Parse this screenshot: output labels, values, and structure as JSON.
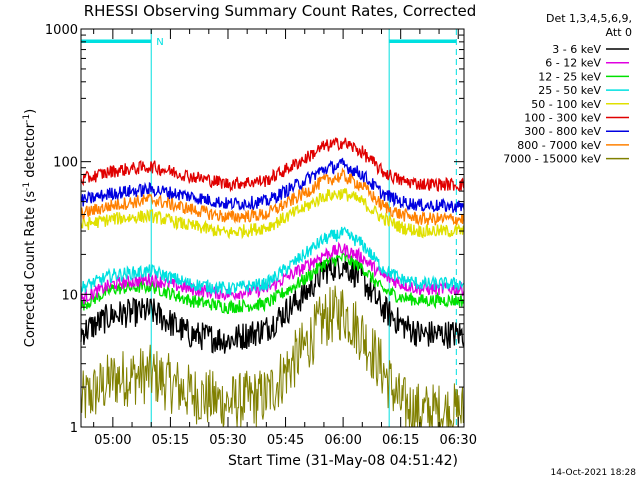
{
  "chart_data": {
    "type": "line",
    "title": "RHESSI Observing Summary Count Rates, Corrected",
    "xlabel": "Start Time (31-May-08 04:51:42)",
    "ylabel": "Corrected Count Rate (s-1 detector-1)",
    "ylabel_parts": {
      "main": "Corrected Count Rate (s",
      "exp1": "-1",
      "mid": " detector",
      "exp2": "-1",
      "end": ")"
    },
    "y_scale": "log",
    "ylim": [
      1,
      1000
    ],
    "xlim": [
      "04:51:42",
      "06:31:30"
    ],
    "x_ticks": [
      "05:00",
      "05:15",
      "05:30",
      "05:45",
      "06:00",
      "06:15",
      "06:30"
    ],
    "y_ticks": [
      "1",
      "10",
      "100",
      "1000"
    ],
    "legend_header": [
      "Det 1,3,4,5,6,9,",
      "Att 0"
    ],
    "legend_placement": "right",
    "timestamp": "14-Oct-2021 18:28",
    "night_flag": "N",
    "series": [
      {
        "name": "3 - 6 keV",
        "color": "#000000",
        "values": [
          [
            "04:51",
            5.0
          ],
          [
            "05:00",
            7.0
          ],
          [
            "05:10",
            7.5
          ],
          [
            "05:20",
            5.0
          ],
          [
            "05:30",
            4.5
          ],
          [
            "05:40",
            5.5
          ],
          [
            "05:50",
            10.0
          ],
          [
            "05:55",
            15.0
          ],
          [
            "06:00",
            17.0
          ],
          [
            "06:05",
            13.0
          ],
          [
            "06:10",
            8.0
          ],
          [
            "06:15",
            6.0
          ],
          [
            "06:20",
            5.0
          ],
          [
            "06:30",
            5.0
          ]
        ]
      },
      {
        "name": "6 - 12 keV",
        "color": "#e000e0",
        "values": [
          [
            "04:51",
            9.0
          ],
          [
            "05:00",
            12.0
          ],
          [
            "05:10",
            13.0
          ],
          [
            "05:20",
            11.0
          ],
          [
            "05:30",
            10.0
          ],
          [
            "05:40",
            11.0
          ],
          [
            "05:50",
            16.0
          ],
          [
            "05:55",
            20.0
          ],
          [
            "06:00",
            22.0
          ],
          [
            "06:05",
            19.0
          ],
          [
            "06:10",
            14.0
          ],
          [
            "06:15",
            12.0
          ],
          [
            "06:20",
            11.0
          ],
          [
            "06:30",
            11.0
          ]
        ]
      },
      {
        "name": "12 - 25 keV",
        "color": "#00e000",
        "values": [
          [
            "04:51",
            8.0
          ],
          [
            "05:00",
            11.0
          ],
          [
            "05:10",
            11.5
          ],
          [
            "05:20",
            9.0
          ],
          [
            "05:30",
            8.0
          ],
          [
            "05:40",
            8.5
          ],
          [
            "05:50",
            13.0
          ],
          [
            "05:55",
            17.0
          ],
          [
            "06:00",
            19.0
          ],
          [
            "06:05",
            16.0
          ],
          [
            "06:10",
            11.0
          ],
          [
            "06:15",
            9.5
          ],
          [
            "06:20",
            9.0
          ],
          [
            "06:30",
            9.0
          ]
        ]
      },
      {
        "name": "25 - 50 keV",
        "color": "#00e0e0",
        "values": [
          [
            "04:51",
            11.0
          ],
          [
            "05:00",
            14.0
          ],
          [
            "05:10",
            15.0
          ],
          [
            "05:20",
            12.0
          ],
          [
            "05:30",
            11.0
          ],
          [
            "05:40",
            12.0
          ],
          [
            "05:50",
            20.0
          ],
          [
            "05:55",
            26.0
          ],
          [
            "06:00",
            29.0
          ],
          [
            "06:05",
            24.0
          ],
          [
            "06:10",
            16.0
          ],
          [
            "06:15",
            13.0
          ],
          [
            "06:20",
            12.0
          ],
          [
            "06:30",
            12.0
          ]
        ]
      },
      {
        "name": "50 - 100 keV",
        "color": "#e0e000",
        "values": [
          [
            "04:51",
            33.0
          ],
          [
            "05:00",
            37.0
          ],
          [
            "05:10",
            39.0
          ],
          [
            "05:20",
            33.0
          ],
          [
            "05:30",
            29.0
          ],
          [
            "05:40",
            32.0
          ],
          [
            "05:50",
            45.0
          ],
          [
            "05:55",
            55.0
          ],
          [
            "06:00",
            58.0
          ],
          [
            "06:05",
            50.0
          ],
          [
            "06:10",
            38.0
          ],
          [
            "06:15",
            32.0
          ],
          [
            "06:20",
            30.0
          ],
          [
            "06:30",
            30.0
          ]
        ]
      },
      {
        "name": "100 - 300 keV",
        "color": "#e00000",
        "values": [
          [
            "04:51",
            72.0
          ],
          [
            "05:00",
            85.0
          ],
          [
            "05:10",
            92.0
          ],
          [
            "05:20",
            78.0
          ],
          [
            "05:30",
            68.0
          ],
          [
            "05:40",
            72.0
          ],
          [
            "05:50",
            105.0
          ],
          [
            "05:55",
            130.0
          ],
          [
            "06:00",
            140.0
          ],
          [
            "06:05",
            118.0
          ],
          [
            "06:10",
            85.0
          ],
          [
            "06:15",
            72.0
          ],
          [
            "06:20",
            68.0
          ],
          [
            "06:30",
            67.0
          ]
        ]
      },
      {
        "name": "300 - 800 keV",
        "color": "#0000e0",
        "values": [
          [
            "04:51",
            50.0
          ],
          [
            "05:00",
            58.0
          ],
          [
            "05:10",
            62.0
          ],
          [
            "05:20",
            55.0
          ],
          [
            "05:30",
            48.0
          ],
          [
            "05:40",
            50.0
          ],
          [
            "05:50",
            72.0
          ],
          [
            "05:55",
            88.0
          ],
          [
            "06:00",
            95.0
          ],
          [
            "06:05",
            80.0
          ],
          [
            "06:10",
            58.0
          ],
          [
            "06:15",
            50.0
          ],
          [
            "06:20",
            47.0
          ],
          [
            "06:30",
            46.0
          ]
        ]
      },
      {
        "name": "800 - 7000 keV",
        "color": "#ff8000",
        "values": [
          [
            "04:51",
            40.0
          ],
          [
            "05:00",
            47.0
          ],
          [
            "05:10",
            52.0
          ],
          [
            "05:20",
            44.0
          ],
          [
            "05:30",
            38.0
          ],
          [
            "05:40",
            40.0
          ],
          [
            "05:50",
            58.0
          ],
          [
            "05:55",
            72.0
          ],
          [
            "06:00",
            78.0
          ],
          [
            "06:05",
            66.0
          ],
          [
            "06:10",
            47.0
          ],
          [
            "06:15",
            40.0
          ],
          [
            "06:20",
            37.0
          ],
          [
            "06:30",
            37.0
          ]
        ]
      },
      {
        "name": "7000 - 15000 keV",
        "color": "#808000",
        "values": [
          [
            "04:51",
            1.5
          ],
          [
            "05:00",
            2.3
          ],
          [
            "05:10",
            2.5
          ],
          [
            "05:20",
            1.8
          ],
          [
            "05:30",
            1.5
          ],
          [
            "05:40",
            1.7
          ],
          [
            "05:50",
            4.0
          ],
          [
            "05:55",
            6.5
          ],
          [
            "06:00",
            7.5
          ],
          [
            "06:05",
            5.0
          ],
          [
            "06:10",
            2.8
          ],
          [
            "06:15",
            1.5
          ],
          [
            "06:20",
            1.3
          ],
          [
            "06:30",
            1.3
          ]
        ]
      }
    ],
    "intervals": {
      "color": "#00e0e0",
      "night": [
        [
          "04:51:42",
          "05:10:00"
        ],
        [
          "06:12:00",
          "06:29:30"
        ]
      ]
    }
  }
}
